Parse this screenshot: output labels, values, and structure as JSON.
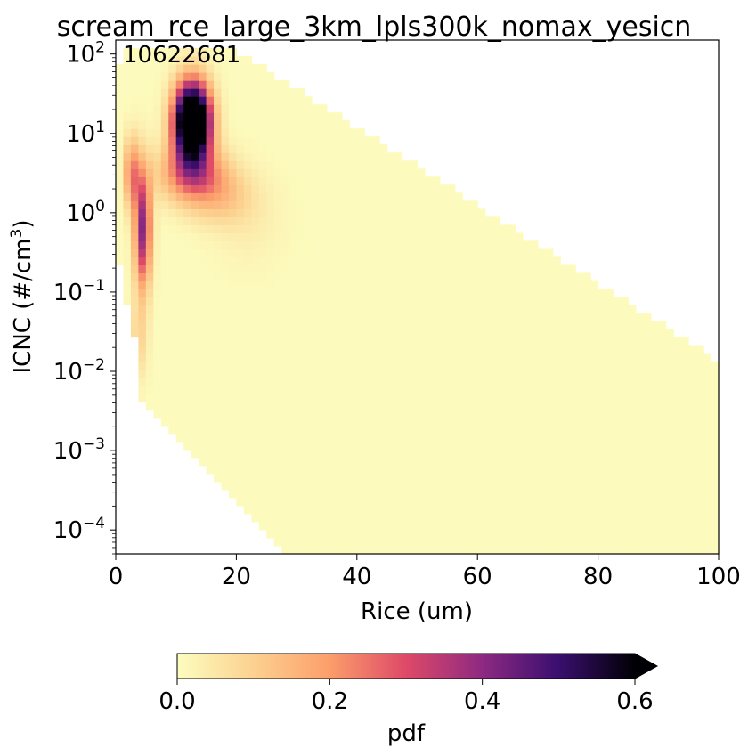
{
  "chart_data": {
    "type": "heatmap",
    "title": "scream_rce_large_3km_lpls300k_nomax_yesicn",
    "xlabel": "Rice (um)",
    "ylabel": "ICNC (#/cm",
    "ylabel_sup": "3",
    "ylabel_close": ")",
    "annotation": "10622681",
    "xlim": [
      0,
      100
    ],
    "ylim": [
      5e-05,
      150
    ],
    "yscale": "log",
    "x_ticks": [
      0,
      20,
      40,
      60,
      80,
      100
    ],
    "x_tick_labels": [
      "0",
      "20",
      "40",
      "60",
      "80",
      "100"
    ],
    "y_ticks": [
      {
        "value": 100,
        "base": "10",
        "exp": "2"
      },
      {
        "value": 10,
        "base": "10",
        "exp": "1"
      },
      {
        "value": 1,
        "base": "10",
        "exp": "0"
      },
      {
        "value": 0.1,
        "base": "10",
        "exp": "−1"
      },
      {
        "value": 0.01,
        "base": "10",
        "exp": "−2"
      },
      {
        "value": 0.001,
        "base": "10",
        "exp": "−3"
      },
      {
        "value": 0.0001,
        "base": "10",
        "exp": "−4"
      }
    ],
    "colormap": "magma_r",
    "colorbar": {
      "label": "pdf",
      "range": [
        0,
        0.6
      ],
      "ticks": [
        0,
        0.2,
        0.4,
        0.6
      ],
      "tick_labels": [
        "0.0",
        "0.2",
        "0.4",
        "0.6"
      ],
      "extend": "max",
      "orientation": "horizontal",
      "placement": "bottom"
    },
    "colors": {
      "low": "#fcfdbf",
      "mid_low": "#fc9f6b",
      "mid": "#de4968",
      "mid_high": "#8c2981",
      "high": "#3b0f70",
      "max": "#000004"
    },
    "grid": false
  }
}
